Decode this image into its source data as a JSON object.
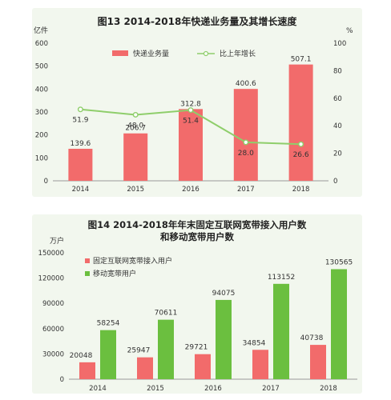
{
  "chart_data": [
    {
      "type": "bar",
      "title": "图13   2014-2018年快递业务量及其增长速度",
      "ylabel": "亿件",
      "y2label": "%",
      "categories": [
        "2014",
        "2015",
        "2016",
        "2017",
        "2018"
      ],
      "ylim": [
        0,
        600
      ],
      "yticks": [
        "0",
        "100",
        "200",
        "300",
        "400",
        "500",
        "600"
      ],
      "y2lim": [
        0,
        100
      ],
      "y2ticks": [
        "0",
        "20",
        "40",
        "60",
        "80",
        "100"
      ],
      "legend_position": "top",
      "series": [
        {
          "name": "快递业务量",
          "type": "bar",
          "color": "#f26b6b",
          "values": [
            139.6,
            206.7,
            312.8,
            400.6,
            507.1
          ],
          "labels": [
            "139.6",
            "206.7",
            "312.8",
            "400.6",
            "507.1"
          ]
        },
        {
          "name": "比上年增长",
          "type": "line",
          "axis": "right",
          "color": "#8fce6b",
          "values": [
            51.9,
            48.0,
            51.4,
            28.0,
            26.6
          ],
          "labels": [
            "51.9",
            "48.0",
            "51.4",
            "28.0",
            "26.6"
          ]
        }
      ]
    },
    {
      "type": "bar",
      "title": "图14  2014-2018年年末固定互联网宽带接入用户数",
      "subtitle": "和移动宽带用户数",
      "ylabel": "万户",
      "categories": [
        "2014",
        "2015",
        "2016",
        "2017",
        "2018"
      ],
      "ylim": [
        0,
        150000
      ],
      "yticks": [
        "0",
        "30000",
        "60000",
        "90000",
        "120000",
        "150000"
      ],
      "legend_position": "top-left",
      "series": [
        {
          "name": "固定互联网宽带接入用户",
          "type": "bar",
          "color": "#f26b6b",
          "values": [
            20048,
            25947,
            29721,
            34854,
            40738
          ],
          "labels": [
            "20048",
            "25947",
            "29721",
            "34854",
            "40738"
          ]
        },
        {
          "name": "移动宽带用户",
          "type": "bar",
          "color": "#6bbf3f",
          "values": [
            58254,
            70611,
            94075,
            113152,
            130565
          ],
          "labels": [
            "58254",
            "70611",
            "94075",
            "113152",
            "130565"
          ]
        }
      ]
    }
  ]
}
